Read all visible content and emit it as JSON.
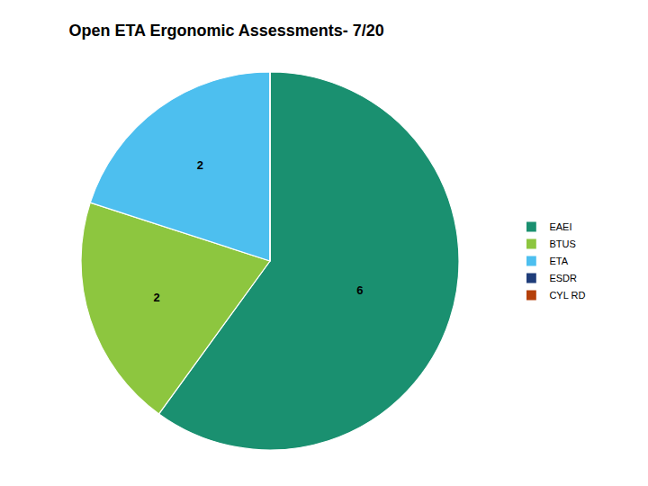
{
  "chart_data": {
    "type": "pie",
    "title": "Open ETA Ergonomic Assessments- 7/20",
    "categories": [
      "EAEI",
      "BTUS",
      "ETA",
      "ESDR",
      "CYL RD"
    ],
    "values": [
      6,
      2,
      2,
      0.0001,
      0.0001
    ],
    "value_labels": [
      "6",
      "2",
      "2",
      null,
      null
    ],
    "colors": [
      "#1a9070",
      "#8dc63f",
      "#4dbfef",
      "#1f3d7a",
      "#b5400a"
    ],
    "data_labels": true,
    "legend": "right"
  }
}
